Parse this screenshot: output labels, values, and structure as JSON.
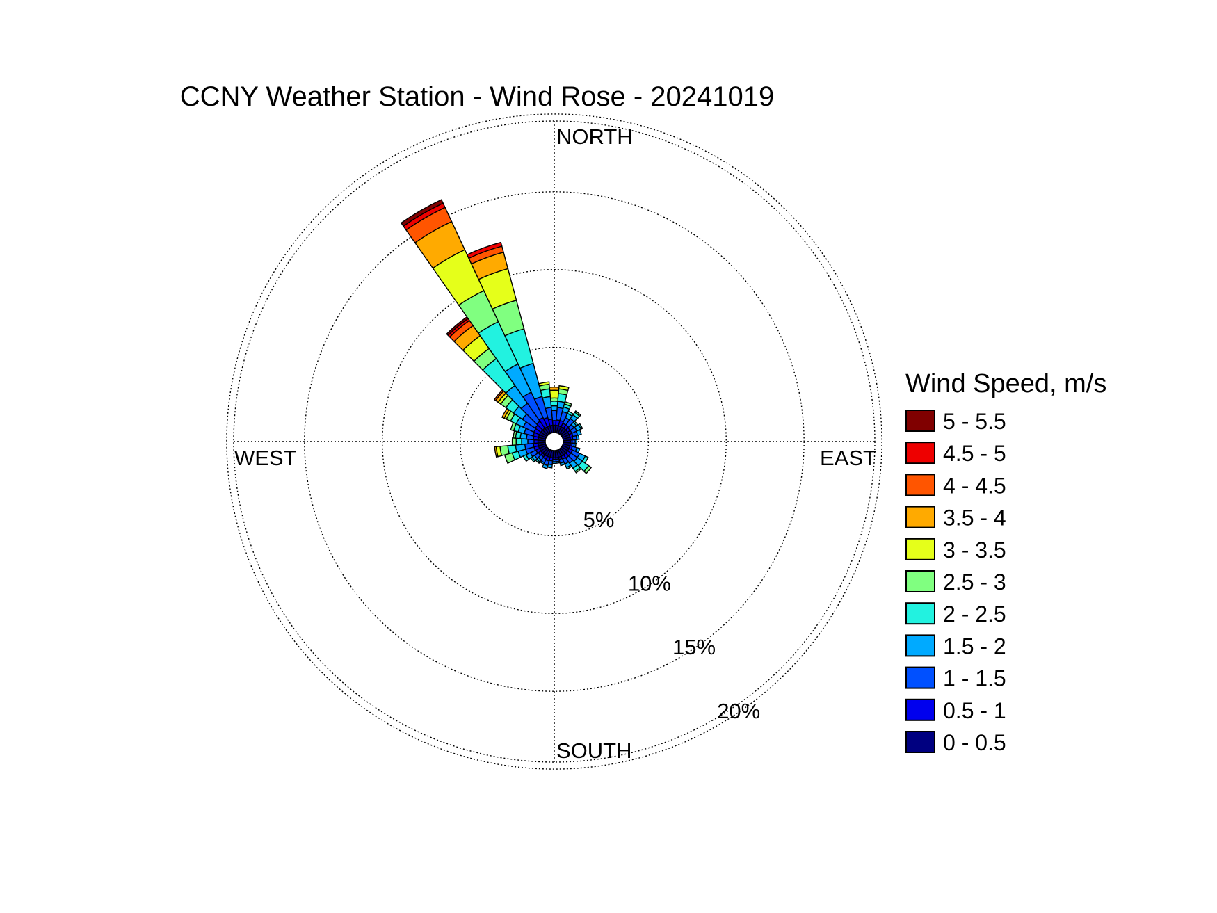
{
  "chart_data": {
    "type": "windrose",
    "title": "CCNY Weather Station - Wind Rose - 20241019",
    "legend_title": "Wind Speed, m/s",
    "legend_placement": "right",
    "direction_labels": {
      "north": "NORTH",
      "south": "SOUTH",
      "east": "EAST",
      "west": "WEST"
    },
    "radial_ticks": [
      {
        "value": 5,
        "label": "5%"
      },
      {
        "value": 10,
        "label": "10%"
      },
      {
        "value": 15,
        "label": "15%"
      },
      {
        "value": 20,
        "label": "20%"
      }
    ],
    "radial_max": 20,
    "radial_unit": "%",
    "grid": true,
    "speed_bins": [
      {
        "label": "0 - 0.5",
        "color": "#000080"
      },
      {
        "label": "0.5 - 1",
        "color": "#0000ee"
      },
      {
        "label": "1 - 1.5",
        "color": "#0050ff"
      },
      {
        "label": "1.5 - 2",
        "color": "#00aaff"
      },
      {
        "label": "2 - 2.5",
        "color": "#22f2e0"
      },
      {
        "label": "2.5 - 3",
        "color": "#80ff80"
      },
      {
        "label": "3 - 3.5",
        "color": "#e5ff1a"
      },
      {
        "label": "3.5 - 4",
        "color": "#ffaa00"
      },
      {
        "label": "4 - 4.5",
        "color": "#ff5500"
      },
      {
        "label": "4.5 - 5",
        "color": "#ee0000"
      },
      {
        "label": "5 - 5.5",
        "color": "#800000"
      }
    ],
    "sector_width_deg": 10,
    "sectors": [
      {
        "dir": 0,
        "cumulative": [
          1.05,
          1.35,
          2.0,
          2.3,
          2.6,
          2.8,
          3.3,
          3.5
        ]
      },
      {
        "dir": 10,
        "cumulative": [
          1.05,
          1.4,
          2.2,
          2.6,
          3.1,
          3.4,
          3.6
        ]
      },
      {
        "dir": 20,
        "cumulative": [
          1.05,
          1.4,
          2.0,
          2.3,
          2.5,
          2.65
        ]
      },
      {
        "dir": 30,
        "cumulative": [
          1.05,
          1.3,
          1.7,
          2.0,
          2.15
        ]
      },
      {
        "dir": 40,
        "cumulative": [
          1.05,
          1.3,
          1.8,
          2.1,
          2.3,
          2.4
        ]
      },
      {
        "dir": 50,
        "cumulative": [
          1.05,
          1.25,
          1.55,
          1.75,
          1.85
        ]
      },
      {
        "dir": 60,
        "cumulative": [
          1.05,
          1.25,
          1.6,
          1.9,
          2.0
        ]
      },
      {
        "dir": 70,
        "cumulative": [
          1.05,
          1.25,
          1.55,
          1.8
        ]
      },
      {
        "dir": 80,
        "cumulative": [
          1.05,
          1.2,
          1.45,
          1.6
        ]
      },
      {
        "dir": 90,
        "cumulative": [
          1.05,
          1.15,
          1.35,
          1.45
        ]
      },
      {
        "dir": 100,
        "cumulative": [
          1.05,
          1.15,
          1.3,
          1.4
        ]
      },
      {
        "dir": 110,
        "cumulative": [
          1.05,
          1.2,
          1.5,
          1.7
        ]
      },
      {
        "dir": 120,
        "cumulative": [
          1.05,
          1.3,
          1.8,
          2.2,
          2.4
        ]
      },
      {
        "dir": 130,
        "cumulative": [
          1.05,
          1.3,
          1.8,
          2.2,
          2.7,
          2.9
        ]
      },
      {
        "dir": 140,
        "cumulative": [
          1.05,
          1.3,
          1.7,
          2.1,
          2.35,
          2.45
        ]
      },
      {
        "dir": 150,
        "cumulative": [
          1.05,
          1.25,
          1.6,
          1.85,
          1.95
        ]
      },
      {
        "dir": 160,
        "cumulative": [
          1.05,
          1.2,
          1.45,
          1.6
        ]
      },
      {
        "dir": 170,
        "cumulative": [
          1.05,
          1.15,
          1.3,
          1.4
        ]
      },
      {
        "dir": 180,
        "cumulative": [
          1.05,
          1.15,
          1.3,
          1.4
        ]
      },
      {
        "dir": 190,
        "cumulative": [
          1.05,
          1.25,
          1.5,
          1.7
        ]
      },
      {
        "dir": 200,
        "cumulative": [
          1.05,
          1.3,
          1.6,
          1.8
        ]
      },
      {
        "dir": 210,
        "cumulative": [
          1.05,
          1.25,
          1.5,
          1.6
        ]
      },
      {
        "dir": 220,
        "cumulative": [
          1.05,
          1.2,
          1.45,
          1.6,
          1.7
        ]
      },
      {
        "dir": 230,
        "cumulative": [
          1.05,
          1.25,
          1.55,
          1.75,
          1.85
        ]
      },
      {
        "dir": 240,
        "cumulative": [
          1.05,
          1.3,
          1.7,
          2.0,
          2.2
        ]
      },
      {
        "dir": 250,
        "cumulative": [
          1.05,
          1.35,
          1.9,
          2.4,
          2.8,
          3.3
        ]
      },
      {
        "dir": 260,
        "cumulative": [
          1.05,
          1.35,
          1.9,
          2.5,
          3.0,
          3.5,
          3.75,
          3.85
        ]
      },
      {
        "dir": 270,
        "cumulative": [
          1.05,
          1.3,
          1.7,
          2.1,
          2.45,
          2.7
        ]
      },
      {
        "dir": 280,
        "cumulative": [
          1.05,
          1.35,
          1.8,
          2.2,
          2.5,
          2.65
        ]
      },
      {
        "dir": 290,
        "cumulative": [
          1.05,
          1.4,
          2.0,
          2.4,
          2.7,
          2.9
        ]
      },
      {
        "dir": 300,
        "cumulative": [
          1.05,
          1.45,
          2.2,
          2.7,
          3.1,
          3.4,
          3.55,
          3.7
        ]
      },
      {
        "dir": 310,
        "cumulative": [
          1.05,
          1.5,
          2.5,
          3.2,
          3.8,
          4.2,
          4.4,
          4.6,
          4.7
        ]
      },
      {
        "dir": 320,
        "cumulative": [
          1.05,
          1.6,
          3.0,
          4.4,
          6.5,
          7.3,
          8.3,
          9.1,
          9.5,
          9.65,
          9.78
        ]
      },
      {
        "dir": 330,
        "cumulative": [
          1.05,
          1.7,
          3.5,
          5.5,
          8.5,
          10.7,
          13.6,
          15.6,
          16.6,
          16.9,
          17.15
        ]
      },
      {
        "dir": 340,
        "cumulative": [
          1.05,
          1.6,
          3.0,
          5.2,
          7.5,
          9.4,
          11.5,
          12.6,
          13.0,
          13.25
        ]
      },
      {
        "dir": 350,
        "cumulative": [
          1.05,
          1.45,
          2.2,
          2.9,
          3.4,
          3.7,
          3.85
        ]
      }
    ]
  }
}
